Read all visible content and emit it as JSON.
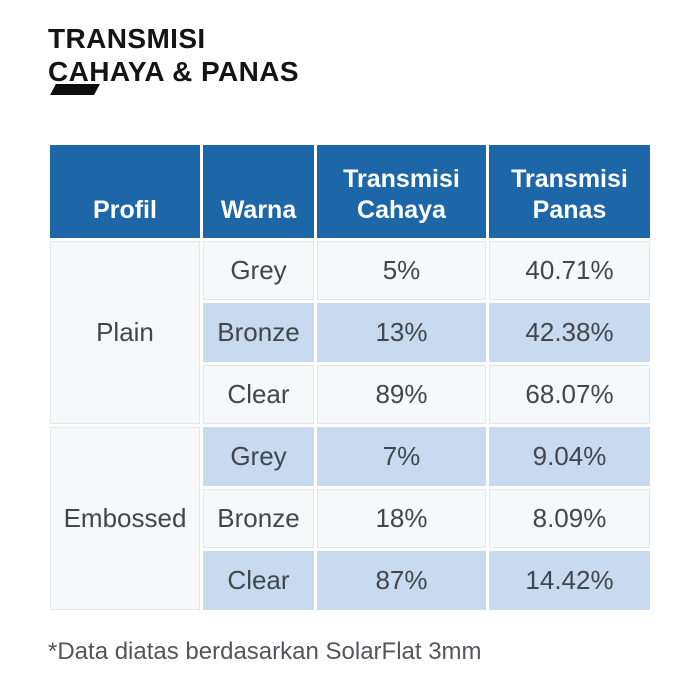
{
  "title": {
    "line1": "TRANSMISI",
    "line2": "CAHAYA & PANAS"
  },
  "table": {
    "headers": [
      {
        "label": "Profil"
      },
      {
        "label": "Warna"
      },
      {
        "line1": "Transmisi",
        "line2": "Cahaya"
      },
      {
        "line1": "Transmisi",
        "line2": "Panas"
      }
    ],
    "groups": [
      {
        "profil": "Plain",
        "rows": [
          {
            "warna": "Grey",
            "transmisi_cahaya": "5%",
            "transmisi_panas": "40.71%"
          },
          {
            "warna": "Bronze",
            "transmisi_cahaya": "13%",
            "transmisi_panas": "42.38%"
          },
          {
            "warna": "Clear",
            "transmisi_cahaya": "89%",
            "transmisi_panas": "68.07%"
          }
        ]
      },
      {
        "profil": "Embossed",
        "rows": [
          {
            "warna": "Grey",
            "transmisi_cahaya": "7%",
            "transmisi_panas": "9.04%"
          },
          {
            "warna": "Bronze",
            "transmisi_cahaya": "18%",
            "transmisi_panas": "8.09%"
          },
          {
            "warna": "Clear",
            "transmisi_cahaya": "87%",
            "transmisi_panas": "14.42%"
          }
        ]
      }
    ]
  },
  "footnote": "*Data diatas berdasarkan SolarFlat 3mm",
  "colors": {
    "header_bg": "#1D66A8",
    "header_text": "#FFFFFF",
    "highlight_row_bg": "#C7DAEF",
    "light_row_bg": "#F7F8F9",
    "title_color": "#141414",
    "cell_text": "#42464D",
    "footnote_text": "#54565B",
    "accent_bar": "#0D0D0D"
  }
}
